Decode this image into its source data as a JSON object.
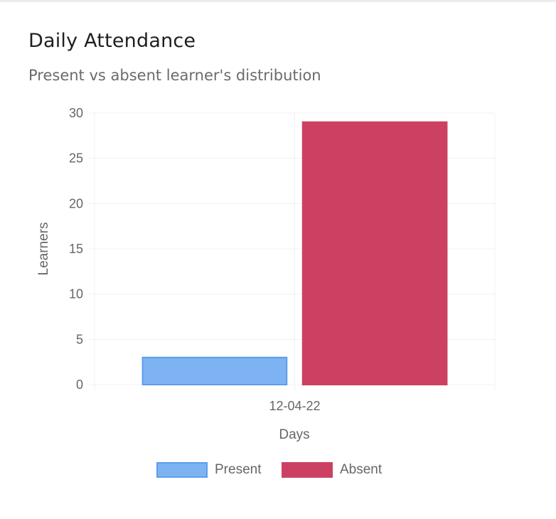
{
  "card": {
    "title": "Daily Attendance",
    "subtitle": "Present vs absent learner's distribution"
  },
  "chart_data": {
    "type": "bar",
    "categories": [
      "12-04-22"
    ],
    "series": [
      {
        "name": "Present",
        "values": [
          3
        ],
        "color": "#7eb3f3",
        "border": "#5e9cec"
      },
      {
        "name": "Absent",
        "values": [
          29
        ],
        "color": "#cc4161",
        "border": "#cc4161"
      }
    ],
    "xlabel": "Days",
    "ylabel": "Learners",
    "ylim": [
      0,
      30
    ],
    "yticks": [
      "0",
      "5",
      "10",
      "15",
      "20",
      "25",
      "30"
    ],
    "grid": true,
    "legend_position": "bottom"
  }
}
